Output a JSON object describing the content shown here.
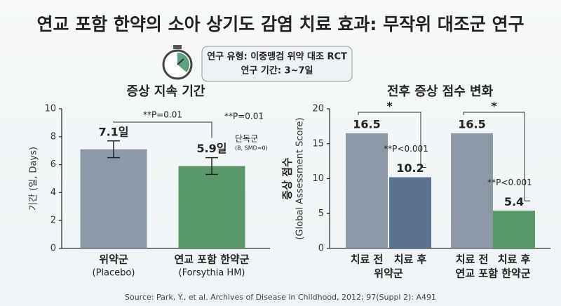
{
  "title": "연교 포함 한약의 소아 상기도 감염 치료 효과: 무작위 대조군 연구",
  "study_box": {
    "line1": "연구 유형: 이중맹검 위약 대조 RCT",
    "line2": "연구 기간: 3~7일"
  },
  "source": "Source: Park, Y., et al. Archives of Disease in Childhood, 2012; 97(Suppl 2): A491",
  "chart_data": [
    {
      "type": "bar",
      "title": "증상 지속 기간",
      "ylabel": "기간 (일, Days)",
      "categories": [
        "위약군",
        "연교 포함 한약군"
      ],
      "category_sublabels": [
        "(Placebo)",
        "(Forsythia HM)"
      ],
      "values": [
        7.1,
        5.9
      ],
      "value_labels": [
        "7.1일",
        "5.9일"
      ],
      "errors": [
        0.6,
        0.6
      ],
      "colors": [
        "#8c9aa8",
        "#5a9a6a"
      ],
      "ylim": [
        0,
        10
      ],
      "yticks": [
        0,
        2,
        4,
        6,
        8,
        10
      ],
      "annotations": [
        "**P=0.01",
        "**P=0.01",
        "단독군",
        "(B, SMD=0)"
      ]
    },
    {
      "type": "bar",
      "title": "전후 증상 점수 변화",
      "ylabel": "증상 점수",
      "ylabel_sub": "(Global Assessment Score)",
      "categories": [
        "치료 전",
        "치료 후",
        "치료 전",
        "치료 후"
      ],
      "groups": [
        "위약군",
        "연교 포함 한약군"
      ],
      "values": [
        16.5,
        10.2,
        16.5,
        5.4
      ],
      "colors": [
        "#8c9aa8",
        "#5a7391",
        "#8c9aa8",
        "#5a9a6a"
      ],
      "ylim": [
        0,
        20
      ],
      "yticks": [
        0,
        5,
        10,
        15,
        20
      ],
      "annotations": [
        "*",
        "**P<0.001",
        "*",
        "**P<0.001"
      ]
    }
  ]
}
